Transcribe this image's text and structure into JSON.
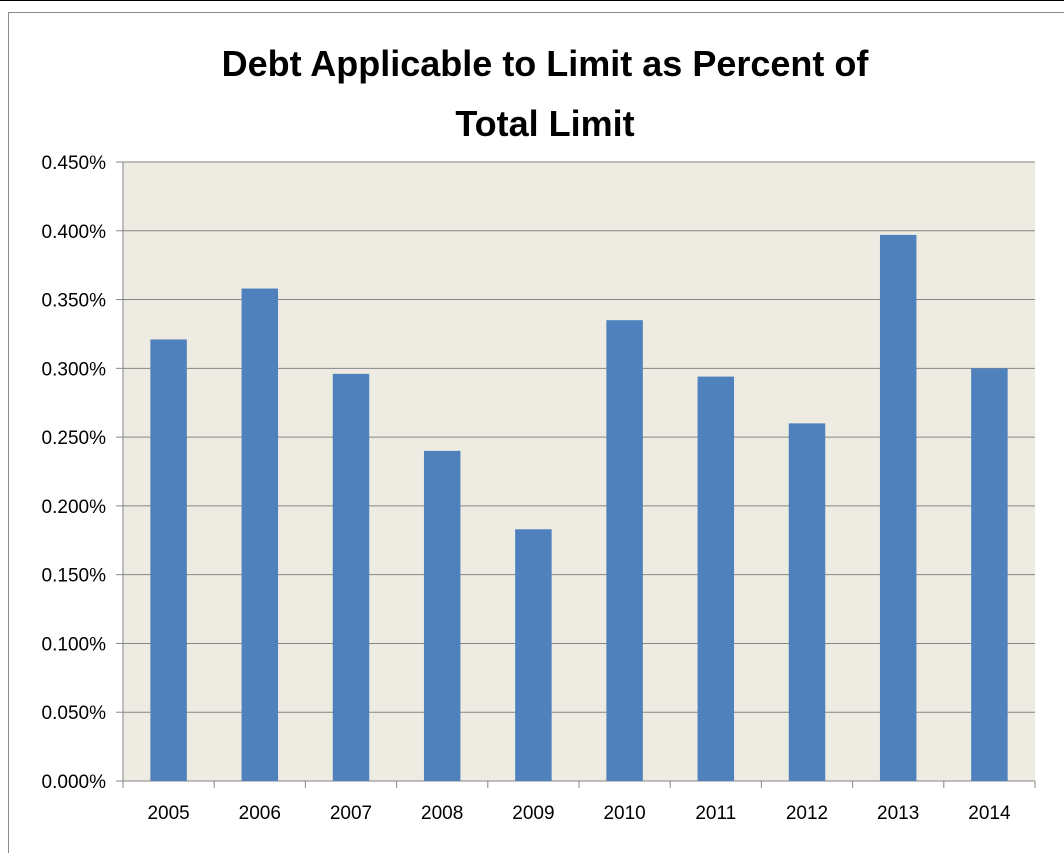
{
  "chart_data": {
    "type": "bar",
    "title_lines": [
      "Debt Applicable to Limit as Percent of",
      "Total Limit"
    ],
    "xlabel": "",
    "ylabel": "",
    "categories": [
      "2005",
      "2006",
      "2007",
      "2008",
      "2009",
      "2010",
      "2011",
      "2012",
      "2013",
      "2014"
    ],
    "values": [
      0.321,
      0.358,
      0.296,
      0.24,
      0.183,
      0.335,
      0.294,
      0.26,
      0.397,
      0.3
    ],
    "value_unit": "%",
    "ylim": [
      0,
      0.45
    ],
    "yticks": [
      0.0,
      0.05,
      0.1,
      0.15,
      0.2,
      0.25,
      0.3,
      0.35,
      0.4,
      0.45
    ],
    "ytick_labels": [
      "0.000%",
      "0.050%",
      "0.100%",
      "0.150%",
      "0.200%",
      "0.250%",
      "0.300%",
      "0.350%",
      "0.400%",
      "0.450%"
    ],
    "grid": true,
    "legend": "none",
    "colors": {
      "bar": "#4f81bd",
      "plot_background": "#eeebe2",
      "gridline": "#868686",
      "axis": "#868686"
    }
  }
}
